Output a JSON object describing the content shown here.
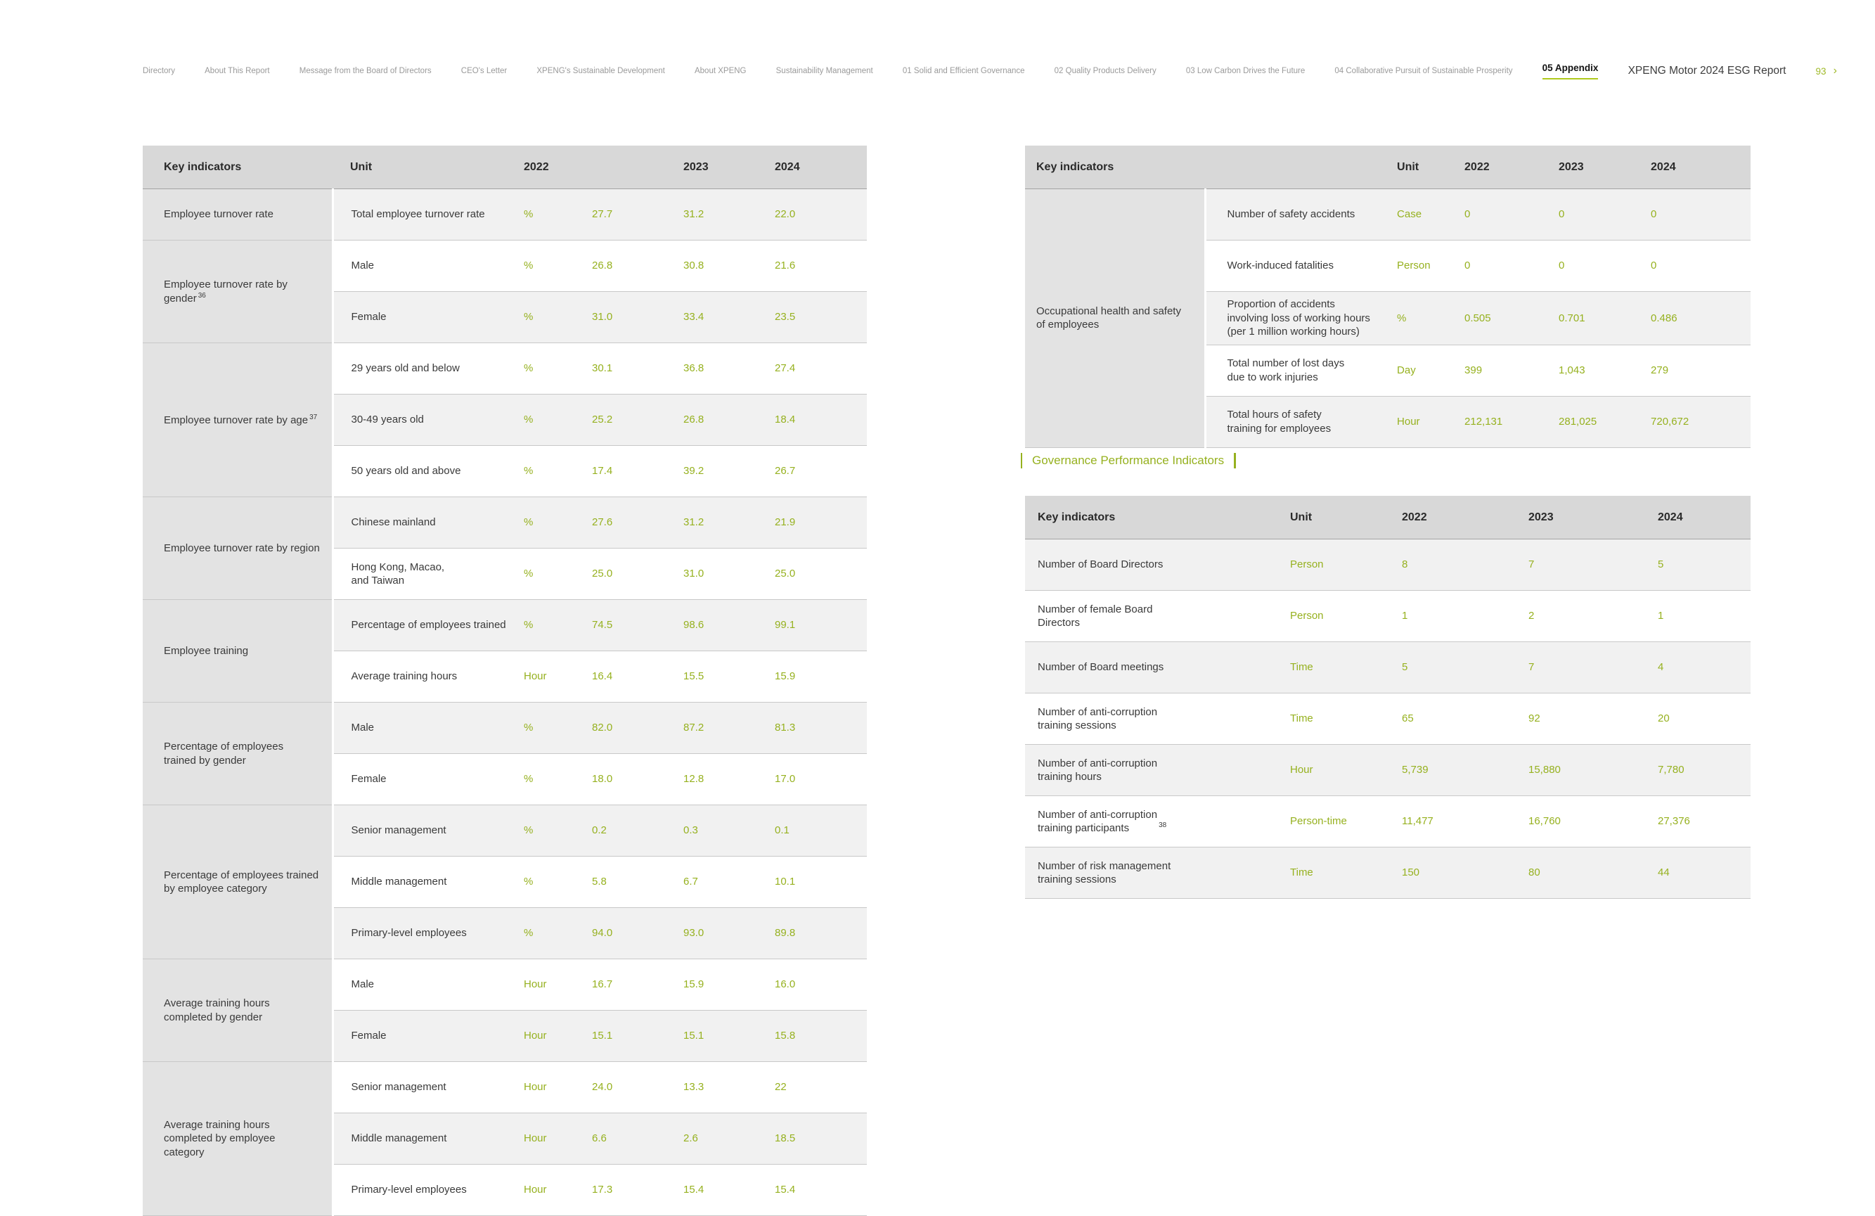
{
  "colors": {
    "accent_green": "#96B11F",
    "active_underline": "#AFC91C",
    "header_gray": "#D8D8D8",
    "group_gray": "#E3E3E3",
    "row_stripe": "#F1F1F1"
  },
  "nav": {
    "items": [
      "Directory",
      "About This Report",
      "Message from the Board of Directors",
      "CEO's Letter",
      "XPENG's Sustainable Development",
      "About XPENG",
      "Sustainability Management",
      "01 Solid and Efficient Governance",
      "02 Quality Products Delivery",
      "03 Low Carbon Drives the Future",
      "04 Collaborative Pursuit of Sustainable Prosperity",
      "05 Appendix"
    ],
    "active_item": "05 Appendix",
    "report_title": "XPENG Motor 2024 ESG Report",
    "page_number": "93",
    "next_icon": "›"
  },
  "social_table": {
    "col_headers": {
      "key_indicators": "Key indicators",
      "unit": "Unit",
      "y2022": "2022",
      "y2023": "2023",
      "y2024": "2024"
    },
    "groups": [
      {
        "label": "Employee turnover rate",
        "rows": [
          {
            "indicator": "Total employee turnover rate",
            "unit": "%",
            "values": [
              "27.7",
              "31.2",
              "22.0"
            ]
          }
        ]
      },
      {
        "label": "Employee turnover rate by gender",
        "sup": "36",
        "rows": [
          {
            "indicator": "Male",
            "unit": "%",
            "values": [
              "26.8",
              "30.8",
              "21.6"
            ]
          },
          {
            "indicator": "Female",
            "unit": "%",
            "values": [
              "31.0",
              "33.4",
              "23.5"
            ]
          }
        ]
      },
      {
        "label": "Employee turnover rate by age",
        "sup": "37",
        "rows": [
          {
            "indicator": "29 years old and below",
            "unit": "%",
            "values": [
              "30.1",
              "36.8",
              "27.4"
            ]
          },
          {
            "indicator": "30-49 years old",
            "unit": "%",
            "values": [
              "25.2",
              "26.8",
              "18.4"
            ]
          },
          {
            "indicator": "50 years old and above",
            "unit": "%",
            "values": [
              "17.4",
              "39.2",
              "26.7"
            ]
          }
        ]
      },
      {
        "label": "Employee turnover rate by region",
        "rows": [
          {
            "indicator": "Chinese mainland",
            "unit": "%",
            "values": [
              "27.6",
              "31.2",
              "21.9"
            ]
          },
          {
            "indicator": "Hong Kong, Macao,\nand Taiwan",
            "unit": "%",
            "values": [
              "25.0",
              "31.0",
              "25.0"
            ]
          }
        ]
      },
      {
        "label": "Employee training",
        "rows": [
          {
            "indicator": "Percentage of employees trained",
            "unit": "%",
            "values": [
              "74.5",
              "98.6",
              "99.1"
            ]
          },
          {
            "indicator": "Average training hours",
            "unit": "Hour",
            "values": [
              "16.4",
              "15.5",
              "15.9"
            ]
          }
        ]
      },
      {
        "label": "Percentage of employees\ntrained by gender",
        "rows": [
          {
            "indicator": "Male",
            "unit": "%",
            "values": [
              "82.0",
              "87.2",
              "81.3"
            ]
          },
          {
            "indicator": "Female",
            "unit": "%",
            "values": [
              "18.0",
              "12.8",
              "17.0"
            ]
          }
        ]
      },
      {
        "label": "Percentage of employees trained\nby employee category",
        "rows": [
          {
            "indicator": "Senior management",
            "unit": "%",
            "values": [
              "0.2",
              "0.3",
              "0.1"
            ]
          },
          {
            "indicator": "Middle management",
            "unit": "%",
            "values": [
              "5.8",
              "6.7",
              "10.1"
            ]
          },
          {
            "indicator": "Primary-level employees",
            "unit": "%",
            "values": [
              "94.0",
              "93.0",
              "89.8"
            ]
          }
        ]
      },
      {
        "label": "Average training hours\ncompleted by gender",
        "rows": [
          {
            "indicator": "Male",
            "unit": "Hour",
            "values": [
              "16.7",
              "15.9",
              "16.0"
            ]
          },
          {
            "indicator": "Female",
            "unit": "Hour",
            "values": [
              "15.1",
              "15.1",
              "15.8"
            ]
          }
        ]
      },
      {
        "label": "Average training hours\ncompleted by employee\ncategory",
        "rows": [
          {
            "indicator": "Senior management",
            "unit": "Hour",
            "values": [
              "24.0",
              "13.3",
              "22"
            ]
          },
          {
            "indicator": "Middle management",
            "unit": "Hour",
            "values": [
              "6.6",
              "2.6",
              "18.5"
            ]
          },
          {
            "indicator": "Primary-level employees",
            "unit": "Hour",
            "values": [
              "17.3",
              "15.4",
              "15.4"
            ]
          }
        ]
      }
    ]
  },
  "occupational_table": {
    "col_headers": {
      "key_indicators": "Key indicators",
      "unit": "Unit",
      "y2022": "2022",
      "y2023": "2023",
      "y2024": "2024"
    },
    "groups": [
      {
        "label": "Occupational health and safety\nof employees",
        "rows": [
          {
            "indicator": "Number of safety accidents",
            "unit": "Case",
            "values": [
              "0",
              "0",
              "0"
            ]
          },
          {
            "indicator": "Work-induced fatalities",
            "unit": "Person",
            "values": [
              "0",
              "0",
              "0"
            ]
          },
          {
            "indicator": "Proportion of accidents\ninvolving loss of working hours\n(per 1 million working hours)",
            "unit": "%",
            "values": [
              "0.505",
              "0.701",
              "0.486"
            ]
          },
          {
            "indicator": "Total number of lost days\ndue to work injuries",
            "unit": "Day",
            "values": [
              "399",
              "1,043",
              "279"
            ]
          },
          {
            "indicator": "Total hours of safety\ntraining for employees",
            "unit": "Hour",
            "values": [
              "212,131",
              "281,025",
              "720,672"
            ]
          }
        ]
      }
    ]
  },
  "governance": {
    "heading": "Governance Performance Indicators",
    "table": {
      "col_headers": {
        "key_indicators": "Key indicators",
        "unit": "Unit",
        "y2022": "2022",
        "y2023": "2023",
        "y2024": "2024"
      },
      "rows": [
        {
          "indicator": "Number of Board Directors",
          "unit": "Person",
          "values": [
            "8",
            "7",
            "5"
          ]
        },
        {
          "indicator": "Number of female Board\nDirectors",
          "unit": "Person",
          "values": [
            "1",
            "2",
            "1"
          ]
        },
        {
          "indicator": "Number of Board meetings",
          "unit": "Time",
          "values": [
            "5",
            "7",
            "4"
          ]
        },
        {
          "indicator": "Number of anti-corruption\ntraining sessions",
          "unit": "Time",
          "values": [
            "65",
            "92",
            "20"
          ]
        },
        {
          "indicator": "Number of anti-corruption\ntraining hours",
          "unit": "Hour",
          "values": [
            "5,739",
            "15,880",
            "7,780"
          ]
        },
        {
          "indicator": "Number of anti-corruption\ntraining participants",
          "sup": "38",
          "unit": "Person-time",
          "values": [
            "11,477",
            "16,760",
            "27,376"
          ]
        },
        {
          "indicator": "Number of risk management\ntraining sessions",
          "unit": "Time",
          "values": [
            "150",
            "80",
            "44"
          ]
        }
      ]
    }
  }
}
